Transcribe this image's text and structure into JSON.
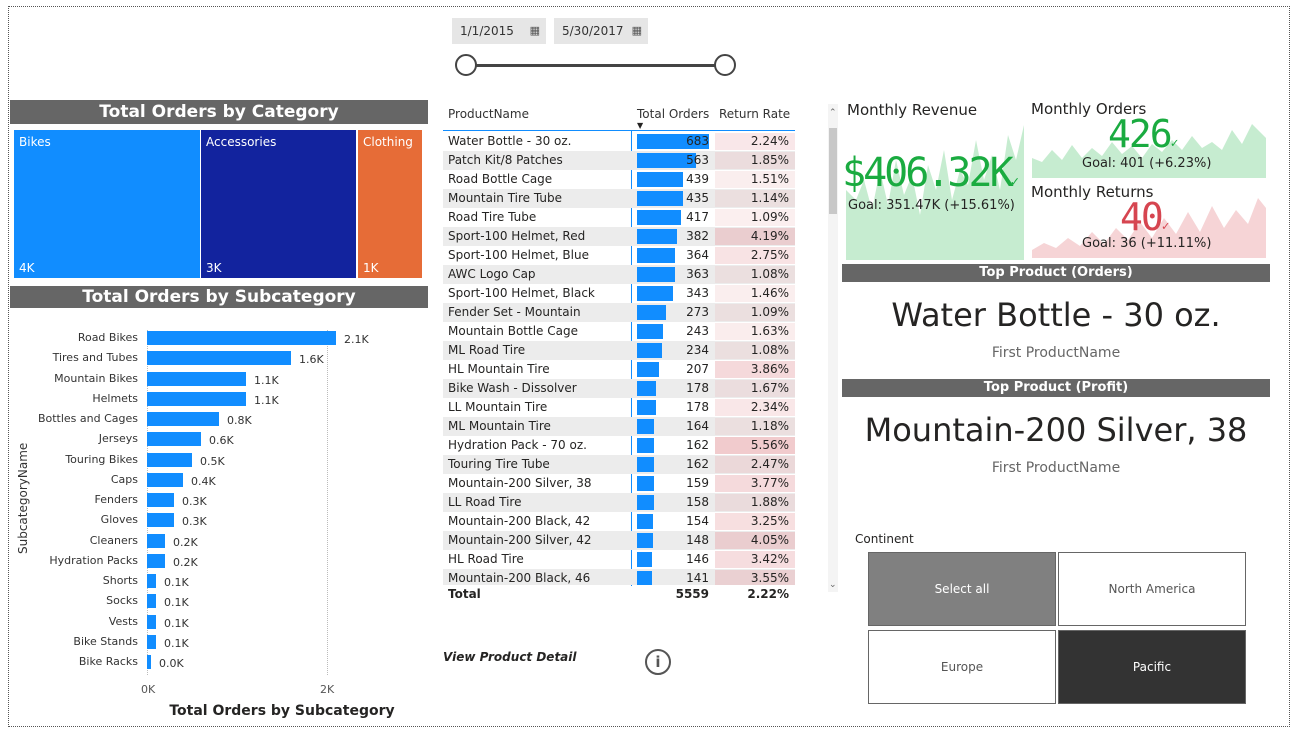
{
  "date_slicer": {
    "start": "1/1/2015",
    "end": "5/30/2017"
  },
  "treemap": {
    "title": "Total Orders by Category",
    "items": [
      {
        "name": "Bikes",
        "value": "4K",
        "color": "#118DFF"
      },
      {
        "name": "Accessories",
        "value": "3K",
        "color": "#12239E"
      },
      {
        "name": "Clothing",
        "value": "1K",
        "color": "#E66C37"
      }
    ]
  },
  "subcategory_chart": {
    "title": "Total Orders by Subcategory",
    "xlabel": "Total Orders by Subcategory",
    "ylabel": "SubcategoryName",
    "ticks": [
      "0K",
      "2K"
    ]
  },
  "chart_data": {
    "type": "bar",
    "title": "Total Orders by Subcategory",
    "xlabel": "Total Orders by Subcategory",
    "ylabel": "SubcategoryName",
    "categories": [
      "Road Bikes",
      "Tires and Tubes",
      "Mountain Bikes",
      "Helmets",
      "Bottles and Cages",
      "Jerseys",
      "Touring Bikes",
      "Caps",
      "Fenders",
      "Gloves",
      "Cleaners",
      "Hydration Packs",
      "Shorts",
      "Socks",
      "Vests",
      "Bike Stands",
      "Bike Racks"
    ],
    "values": [
      2100,
      1600,
      1100,
      1100,
      800,
      600,
      500,
      400,
      300,
      300,
      200,
      200,
      100,
      100,
      100,
      100,
      0
    ],
    "labels": [
      "2.1K",
      "1.6K",
      "1.1K",
      "1.1K",
      "0.8K",
      "0.6K",
      "0.5K",
      "0.4K",
      "0.3K",
      "0.3K",
      "0.2K",
      "0.2K",
      "0.1K",
      "0.1K",
      "0.1K",
      "0.1K",
      "0.0K"
    ],
    "xlim": [
      0,
      2000
    ]
  },
  "product_table": {
    "headers": {
      "name": "ProductName",
      "orders": "Total Orders",
      "return_rate": "Return Rate"
    },
    "rows": [
      {
        "name": "Water Bottle - 30 oz.",
        "orders": 683,
        "rate": "2.24%"
      },
      {
        "name": "Patch Kit/8 Patches",
        "orders": 563,
        "rate": "1.85%"
      },
      {
        "name": "Road Bottle Cage",
        "orders": 439,
        "rate": "1.51%"
      },
      {
        "name": "Mountain Tire Tube",
        "orders": 435,
        "rate": "1.14%"
      },
      {
        "name": "Road Tire Tube",
        "orders": 417,
        "rate": "1.09%"
      },
      {
        "name": "Sport-100 Helmet, Red",
        "orders": 382,
        "rate": "4.19%"
      },
      {
        "name": "Sport-100 Helmet, Blue",
        "orders": 364,
        "rate": "2.75%"
      },
      {
        "name": "AWC Logo Cap",
        "orders": 363,
        "rate": "1.08%"
      },
      {
        "name": "Sport-100 Helmet, Black",
        "orders": 343,
        "rate": "1.46%"
      },
      {
        "name": "Fender Set - Mountain",
        "orders": 273,
        "rate": "1.09%"
      },
      {
        "name": "Mountain Bottle Cage",
        "orders": 243,
        "rate": "1.63%"
      },
      {
        "name": "ML Road Tire",
        "orders": 234,
        "rate": "1.08%"
      },
      {
        "name": "HL Mountain Tire",
        "orders": 207,
        "rate": "3.86%"
      },
      {
        "name": "Bike Wash - Dissolver",
        "orders": 178,
        "rate": "1.67%"
      },
      {
        "name": "LL Mountain Tire",
        "orders": 178,
        "rate": "2.34%"
      },
      {
        "name": "ML Mountain Tire",
        "orders": 164,
        "rate": "1.18%"
      },
      {
        "name": "Hydration Pack - 70 oz.",
        "orders": 162,
        "rate": "5.56%"
      },
      {
        "name": "Touring Tire Tube",
        "orders": 162,
        "rate": "2.47%"
      },
      {
        "name": "Mountain-200 Silver, 38",
        "orders": 159,
        "rate": "3.77%"
      },
      {
        "name": "LL Road Tire",
        "orders": 158,
        "rate": "1.88%"
      },
      {
        "name": "Mountain-200 Black, 42",
        "orders": 154,
        "rate": "3.25%"
      },
      {
        "name": "Mountain-200 Silver, 42",
        "orders": 148,
        "rate": "4.05%"
      },
      {
        "name": "HL Road Tire",
        "orders": 146,
        "rate": "3.42%"
      },
      {
        "name": "Mountain-200 Black, 46",
        "orders": 141,
        "rate": "3.55%"
      }
    ],
    "total": {
      "label": "Total",
      "orders": "5559",
      "rate": "2.22%"
    },
    "max_orders": 683
  },
  "view_detail": "View Product Detail",
  "kpis": {
    "revenue": {
      "title": "Monthly Revenue",
      "value": "$406.32K",
      "goal": "Goal: 351.47K (+15.61%)"
    },
    "orders": {
      "title": "Monthly Orders",
      "value": "426",
      "goal": "Goal: 401 (+6.23%)"
    },
    "returns": {
      "title": "Monthly Returns",
      "value": "40",
      "goal": "Goal: 36 (+11.11%)"
    }
  },
  "top_orders": {
    "title": "Top Product (Orders)",
    "value": "Water Bottle - 30 oz.",
    "caption": "First ProductName"
  },
  "top_profit": {
    "title": "Top Product (Profit)",
    "value": "Mountain-200 Silver, 38",
    "caption": "First ProductName"
  },
  "continent": {
    "label": "Continent",
    "options": [
      {
        "name": "Select all",
        "state": "partial"
      },
      {
        "name": "North America",
        "state": "off"
      },
      {
        "name": "Europe",
        "state": "off"
      },
      {
        "name": "Pacific",
        "state": "on"
      }
    ]
  }
}
